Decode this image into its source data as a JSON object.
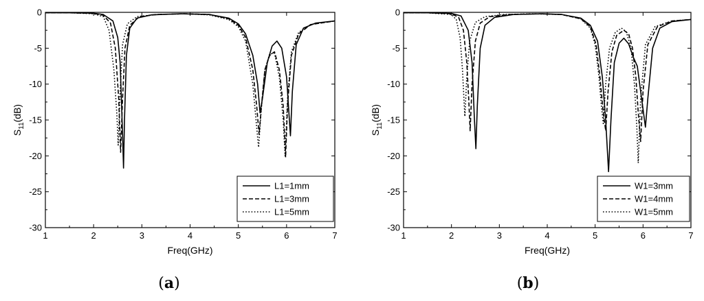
{
  "chart_data": [
    {
      "type": "line",
      "panel_label": "(a)",
      "panel_letter": "a",
      "xlabel": "Freq(GHz)",
      "ylabel_main": "S",
      "ylabel_sub": "11",
      "ylabel_unit": "(dB)",
      "xlim": [
        1,
        7
      ],
      "ylim": [
        -30,
        0
      ],
      "xticks": [
        1,
        2,
        3,
        4,
        5,
        6,
        7
      ],
      "yticks": [
        0,
        -5,
        -10,
        -15,
        -20,
        -25,
        -30
      ],
      "legend_position": "bottom-right",
      "series": [
        {
          "name": "L1=1mm",
          "style": "solid",
          "points": [
            [
              1.0,
              -0.05
            ],
            [
              1.5,
              -0.06
            ],
            [
              2.0,
              -0.12
            ],
            [
              2.2,
              -0.3
            ],
            [
              2.4,
              -1.2
            ],
            [
              2.5,
              -3.5
            ],
            [
              2.55,
              -7
            ],
            [
              2.6,
              -17
            ],
            [
              2.62,
              -21.7
            ],
            [
              2.64,
              -15
            ],
            [
              2.68,
              -6
            ],
            [
              2.75,
              -2.2
            ],
            [
              2.9,
              -0.8
            ],
            [
              3.2,
              -0.35
            ],
            [
              3.8,
              -0.2
            ],
            [
              4.4,
              -0.3
            ],
            [
              4.8,
              -0.8
            ],
            [
              5.0,
              -1.6
            ],
            [
              5.15,
              -3
            ],
            [
              5.3,
              -6
            ],
            [
              5.4,
              -10
            ],
            [
              5.45,
              -14
            ],
            [
              5.5,
              -12
            ],
            [
              5.6,
              -7
            ],
            [
              5.7,
              -4.7
            ],
            [
              5.8,
              -4
            ],
            [
              5.9,
              -5
            ],
            [
              6.0,
              -9
            ],
            [
              6.08,
              -17.2
            ],
            [
              6.12,
              -11
            ],
            [
              6.2,
              -4.5
            ],
            [
              6.35,
              -2.2
            ],
            [
              6.6,
              -1.5
            ],
            [
              7.0,
              -1.2
            ]
          ]
        },
        {
          "name": "L1=3mm",
          "style": "dashed",
          "points": [
            [
              1.0,
              -0.05
            ],
            [
              1.5,
              -0.06
            ],
            [
              2.0,
              -0.15
            ],
            [
              2.2,
              -0.4
            ],
            [
              2.35,
              -1.5
            ],
            [
              2.45,
              -5
            ],
            [
              2.52,
              -12
            ],
            [
              2.56,
              -19.5
            ],
            [
              2.6,
              -12
            ],
            [
              2.65,
              -5
            ],
            [
              2.75,
              -1.8
            ],
            [
              2.95,
              -0.6
            ],
            [
              3.3,
              -0.3
            ],
            [
              3.9,
              -0.2
            ],
            [
              4.4,
              -0.3
            ],
            [
              4.8,
              -0.9
            ],
            [
              5.0,
              -1.8
            ],
            [
              5.15,
              -3.5
            ],
            [
              5.3,
              -8
            ],
            [
              5.38,
              -13
            ],
            [
              5.43,
              -17
            ],
            [
              5.48,
              -13
            ],
            [
              5.55,
              -8
            ],
            [
              5.65,
              -6
            ],
            [
              5.75,
              -5.5
            ],
            [
              5.85,
              -8
            ],
            [
              5.93,
              -13
            ],
            [
              5.98,
              -20.2
            ],
            [
              6.02,
              -13
            ],
            [
              6.1,
              -6
            ],
            [
              6.25,
              -3
            ],
            [
              6.5,
              -1.7
            ],
            [
              7.0,
              -1.2
            ]
          ]
        },
        {
          "name": "L1=5mm",
          "style": "dotted",
          "points": [
            [
              1.0,
              -0.05
            ],
            [
              1.5,
              -0.06
            ],
            [
              2.0,
              -0.2
            ],
            [
              2.2,
              -0.6
            ],
            [
              2.32,
              -2.5
            ],
            [
              2.42,
              -8
            ],
            [
              2.48,
              -14
            ],
            [
              2.51,
              -18.5
            ],
            [
              2.55,
              -11
            ],
            [
              2.6,
              -4.5
            ],
            [
              2.7,
              -1.6
            ],
            [
              2.9,
              -0.6
            ],
            [
              3.3,
              -0.3
            ],
            [
              3.9,
              -0.2
            ],
            [
              4.4,
              -0.35
            ],
            [
              4.8,
              -1.0
            ],
            [
              5.0,
              -2
            ],
            [
              5.15,
              -4
            ],
            [
              5.3,
              -10
            ],
            [
              5.38,
              -16
            ],
            [
              5.42,
              -18.8
            ],
            [
              5.47,
              -14
            ],
            [
              5.55,
              -8
            ],
            [
              5.65,
              -5.8
            ],
            [
              5.75,
              -5.7
            ],
            [
              5.85,
              -9
            ],
            [
              5.93,
              -15
            ],
            [
              5.97,
              -20
            ],
            [
              6.02,
              -12
            ],
            [
              6.1,
              -5.5
            ],
            [
              6.25,
              -2.8
            ],
            [
              6.5,
              -1.7
            ],
            [
              7.0,
              -1.2
            ]
          ]
        }
      ]
    },
    {
      "type": "line",
      "panel_label": "(b)",
      "panel_letter": "b",
      "xlabel": "Freq(GHz)",
      "ylabel_main": "S",
      "ylabel_sub": "11",
      "ylabel_unit": "(dB)",
      "xlim": [
        1,
        7
      ],
      "ylim": [
        -30,
        0
      ],
      "xticks": [
        1,
        2,
        3,
        4,
        5,
        6,
        7
      ],
      "yticks": [
        0,
        -5,
        -10,
        -15,
        -20,
        -25,
        -30
      ],
      "legend_position": "bottom-right",
      "series": [
        {
          "name": "W1=3mm",
          "style": "solid",
          "points": [
            [
              1.0,
              -0.05
            ],
            [
              1.5,
              -0.06
            ],
            [
              2.0,
              -0.15
            ],
            [
              2.2,
              -0.5
            ],
            [
              2.35,
              -2.5
            ],
            [
              2.43,
              -7
            ],
            [
              2.48,
              -15
            ],
            [
              2.51,
              -19
            ],
            [
              2.54,
              -13
            ],
            [
              2.6,
              -5
            ],
            [
              2.7,
              -1.8
            ],
            [
              2.9,
              -0.7
            ],
            [
              3.3,
              -0.3
            ],
            [
              3.9,
              -0.2
            ],
            [
              4.3,
              -0.3
            ],
            [
              4.7,
              -0.8
            ],
            [
              4.9,
              -1.8
            ],
            [
              5.05,
              -4
            ],
            [
              5.15,
              -9
            ],
            [
              5.22,
              -15
            ],
            [
              5.28,
              -22.2
            ],
            [
              5.33,
              -15
            ],
            [
              5.4,
              -7
            ],
            [
              5.5,
              -4.3
            ],
            [
              5.6,
              -3.6
            ],
            [
              5.7,
              -4.4
            ],
            [
              5.8,
              -6.3
            ],
            [
              5.88,
              -7.5
            ],
            [
              5.95,
              -11
            ],
            [
              6.05,
              -16
            ],
            [
              6.1,
              -12
            ],
            [
              6.2,
              -5
            ],
            [
              6.35,
              -2.2
            ],
            [
              6.6,
              -1.3
            ],
            [
              7.0,
              -1.0
            ]
          ]
        },
        {
          "name": "W1=4mm",
          "style": "dashed",
          "points": [
            [
              1.0,
              -0.05
            ],
            [
              1.5,
              -0.06
            ],
            [
              2.0,
              -0.2
            ],
            [
              2.15,
              -0.7
            ],
            [
              2.25,
              -2.5
            ],
            [
              2.32,
              -7
            ],
            [
              2.36,
              -12
            ],
            [
              2.39,
              -16.5
            ],
            [
              2.43,
              -10
            ],
            [
              2.5,
              -4
            ],
            [
              2.6,
              -1.5
            ],
            [
              2.8,
              -0.6
            ],
            [
              3.2,
              -0.3
            ],
            [
              3.8,
              -0.2
            ],
            [
              4.3,
              -0.3
            ],
            [
              4.7,
              -0.9
            ],
            [
              4.9,
              -2
            ],
            [
              5.02,
              -4.5
            ],
            [
              5.1,
              -9
            ],
            [
              5.17,
              -14
            ],
            [
              5.22,
              -16.5
            ],
            [
              5.27,
              -11
            ],
            [
              5.35,
              -5.5
            ],
            [
              5.45,
              -3.2
            ],
            [
              5.6,
              -2.5
            ],
            [
              5.7,
              -3
            ],
            [
              5.78,
              -5
            ],
            [
              5.85,
              -9
            ],
            [
              5.9,
              -14
            ],
            [
              5.95,
              -18
            ],
            [
              6.0,
              -11
            ],
            [
              6.1,
              -4.5
            ],
            [
              6.3,
              -2
            ],
            [
              6.6,
              -1.2
            ],
            [
              7.0,
              -1.0
            ]
          ]
        },
        {
          "name": "W1=5mm",
          "style": "dotted",
          "points": [
            [
              1.0,
              -0.05
            ],
            [
              1.5,
              -0.07
            ],
            [
              2.0,
              -0.3
            ],
            [
              2.1,
              -1.0
            ],
            [
              2.18,
              -3.5
            ],
            [
              2.23,
              -8
            ],
            [
              2.26,
              -12
            ],
            [
              2.28,
              -14.5
            ],
            [
              2.32,
              -9
            ],
            [
              2.38,
              -4
            ],
            [
              2.5,
              -1.4
            ],
            [
              2.7,
              -0.6
            ],
            [
              3.1,
              -0.3
            ],
            [
              3.7,
              -0.2
            ],
            [
              4.3,
              -0.3
            ],
            [
              4.7,
              -0.9
            ],
            [
              4.9,
              -2.2
            ],
            [
              5.0,
              -4.5
            ],
            [
              5.08,
              -9
            ],
            [
              5.13,
              -13
            ],
            [
              5.17,
              -15.5
            ],
            [
              5.22,
              -10
            ],
            [
              5.3,
              -5
            ],
            [
              5.42,
              -2.8
            ],
            [
              5.55,
              -2.2
            ],
            [
              5.65,
              -2.7
            ],
            [
              5.75,
              -5
            ],
            [
              5.82,
              -10
            ],
            [
              5.87,
              -16
            ],
            [
              5.9,
              -21
            ],
            [
              5.95,
              -12
            ],
            [
              6.05,
              -4.5
            ],
            [
              6.25,
              -2
            ],
            [
              6.6,
              -1.2
            ],
            [
              7.0,
              -1.0
            ]
          ]
        }
      ]
    }
  ]
}
